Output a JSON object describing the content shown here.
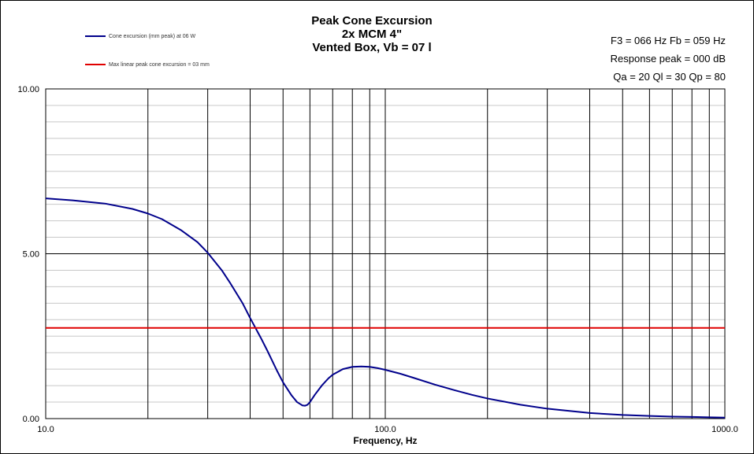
{
  "chart_data": {
    "type": "line",
    "title": [
      "Peak Cone Excursion",
      "2x MCM 4\"",
      "Vented Box, Vb = 07 l"
    ],
    "xlabel": "Frequency,  Hz",
    "ylabel": "",
    "x_scale": "log",
    "xlim": [
      10,
      1000
    ],
    "ylim": [
      0,
      10
    ],
    "x_tick_labels": [
      "10.0",
      "100.0",
      "1000.0"
    ],
    "x_ticks": [
      10,
      100,
      1000
    ],
    "y_tick_labels": [
      "0.00",
      "5.00",
      "10.00"
    ],
    "y_ticks": [
      0,
      5,
      10
    ],
    "grid": true,
    "info_lines": [
      "F3 = 066 Hz  Fb = 059 Hz",
      "Response peak = 000 dB",
      "Qa = 20  Ql = 30  Qp = 80"
    ],
    "series": [
      {
        "name": "Cone excursion (mm peak) at 06 W",
        "color": "#00008b",
        "x": [
          10,
          12,
          15,
          18,
          20,
          22,
          25,
          28,
          30,
          33,
          35,
          38,
          40,
          43,
          45,
          48,
          50,
          53,
          55,
          57,
          58,
          59,
          60,
          62,
          65,
          68,
          70,
          75,
          80,
          85,
          90,
          95,
          100,
          110,
          120,
          140,
          160,
          180,
          200,
          250,
          300,
          400,
          500,
          600,
          700,
          800,
          900,
          1000
        ],
        "y": [
          6.68,
          6.62,
          6.52,
          6.36,
          6.22,
          6.05,
          5.72,
          5.35,
          5.03,
          4.5,
          4.1,
          3.5,
          3.05,
          2.45,
          2.05,
          1.45,
          1.1,
          0.7,
          0.5,
          0.4,
          0.39,
          0.42,
          0.5,
          0.72,
          1.0,
          1.22,
          1.33,
          1.5,
          1.57,
          1.58,
          1.57,
          1.53,
          1.48,
          1.37,
          1.25,
          1.03,
          0.86,
          0.72,
          0.61,
          0.42,
          0.3,
          0.17,
          0.11,
          0.08,
          0.06,
          0.05,
          0.04,
          0.03
        ]
      },
      {
        "name": "Max linear peak cone excursion = 03 mm",
        "color": "#e00000",
        "x": [
          10,
          1000
        ],
        "y": [
          2.75,
          2.75
        ]
      }
    ]
  }
}
